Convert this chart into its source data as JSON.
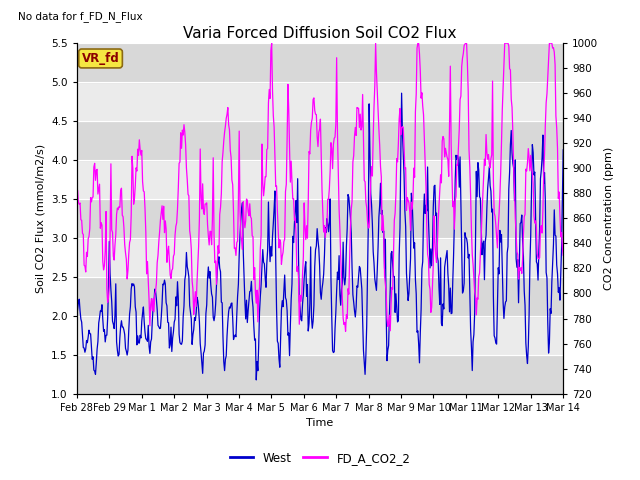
{
  "title": "Varia Forced Diffusion Soil CO2 Flux",
  "no_data_text": "No data for f_FD_N_Flux",
  "vr_fd_label": "VR_fd",
  "xlabel": "Time",
  "ylabel_left": "Soil CO2 Flux (mmol/m2/s)",
  "ylabel_right": "CO2 Concentration (ppm)",
  "ylim_left": [
    1.0,
    5.5
  ],
  "ylim_right": [
    720,
    1000
  ],
  "yticks_left": [
    1.0,
    1.5,
    2.0,
    2.5,
    3.0,
    3.5,
    4.0,
    4.5,
    5.0,
    5.5
  ],
  "yticks_right": [
    720,
    740,
    760,
    780,
    800,
    820,
    840,
    860,
    880,
    900,
    920,
    940,
    960,
    980,
    1000
  ],
  "xtick_labels": [
    "Feb 28",
    "Feb 29",
    "Mar 1",
    "Mar 2",
    "Mar 3",
    "Mar 4",
    "Mar 5",
    "Mar 6",
    "Mar 7",
    "Mar 8",
    "Mar 9",
    "Mar 10",
    "Mar 11",
    "Mar 12",
    "Mar 13",
    "Mar 14"
  ],
  "blue_color": "#0000CC",
  "magenta_color": "#FF00FF",
  "background_color": "#FFFFFF",
  "plot_bg_light": "#EBEBEB",
  "plot_bg_dark": "#D8D8D8",
  "legend_labels": [
    "West",
    "FD_A_CO2_2"
  ],
  "title_fontsize": 11,
  "label_fontsize": 8,
  "tick_fontsize": 7.5
}
